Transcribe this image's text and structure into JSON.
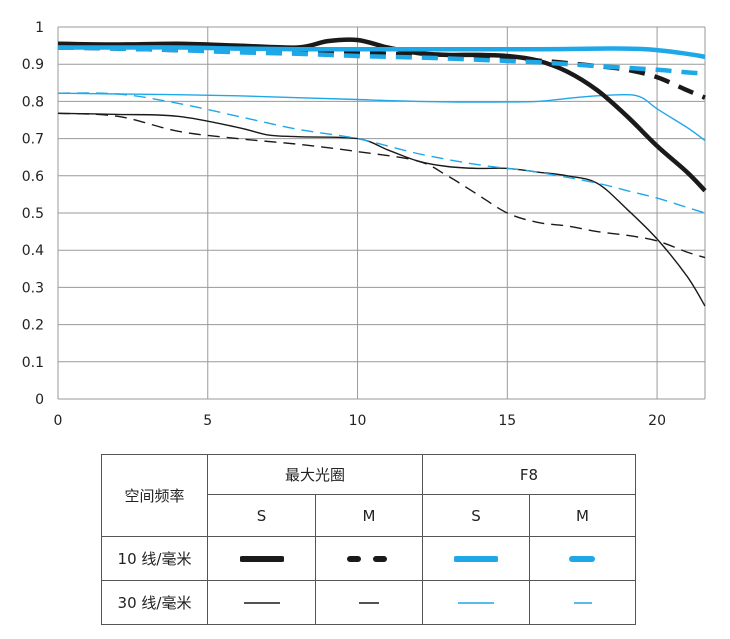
{
  "chart_data": {
    "type": "line",
    "xlim": [
      0,
      21.6
    ],
    "ylim": [
      0,
      1
    ],
    "x_ticks": [
      "0",
      "5",
      "10",
      "15",
      "20"
    ],
    "y_ticks": [
      "0",
      "0.1",
      "0.2",
      "0.3",
      "0.4",
      "0.5",
      "0.6",
      "0.7",
      "0.8",
      "0.9",
      "1"
    ],
    "grid": true,
    "colors": {
      "black": "#1a1a1a",
      "blue": "#1fa8e8"
    },
    "series": [
      {
        "name": "最大光圈 10 线/毫米 S",
        "color": "#1a1a1a",
        "width": "thick",
        "dash": "solid",
        "x": [
          0,
          2,
          4,
          6,
          8,
          9,
          10,
          11,
          12,
          13,
          14,
          15,
          16,
          17,
          18,
          19,
          20,
          21,
          21.6
        ],
        "y": [
          0.955,
          0.953,
          0.955,
          0.95,
          0.945,
          0.962,
          0.965,
          0.945,
          0.93,
          0.925,
          0.925,
          0.922,
          0.91,
          0.88,
          0.83,
          0.76,
          0.68,
          0.61,
          0.56
        ]
      },
      {
        "name": "最大光圈 10 线/毫米 M",
        "color": "#1a1a1a",
        "width": "thick",
        "dash": "long",
        "x": [
          0,
          2,
          4,
          6,
          8,
          10,
          12,
          14,
          16,
          18,
          19,
          20,
          21,
          21.6
        ],
        "y": [
          0.945,
          0.942,
          0.938,
          0.935,
          0.932,
          0.93,
          0.925,
          0.92,
          0.91,
          0.895,
          0.885,
          0.865,
          0.83,
          0.81
        ]
      },
      {
        "name": "F8 10 线/毫米 S",
        "color": "#1fa8e8",
        "width": "thick",
        "dash": "solid",
        "x": [
          0,
          2,
          4,
          6,
          8,
          10,
          12,
          14,
          16,
          18,
          19,
          20,
          21,
          21.6
        ],
        "y": [
          0.945,
          0.945,
          0.945,
          0.942,
          0.94,
          0.94,
          0.94,
          0.94,
          0.94,
          0.942,
          0.942,
          0.938,
          0.928,
          0.92
        ]
      },
      {
        "name": "F8 10 线/毫米 M",
        "color": "#1fa8e8",
        "width": "thick",
        "dash": "long",
        "x": [
          0,
          2,
          4,
          6,
          8,
          10,
          12,
          14,
          16,
          18,
          20,
          21,
          21.6
        ],
        "y": [
          0.945,
          0.942,
          0.938,
          0.932,
          0.928,
          0.922,
          0.918,
          0.912,
          0.905,
          0.895,
          0.885,
          0.878,
          0.875
        ]
      },
      {
        "name": "最大光圈 30 线/毫米 S",
        "color": "#1a1a1a",
        "width": "thin",
        "dash": "solid",
        "x": [
          0,
          2,
          4,
          6,
          7,
          8,
          10,
          11,
          12,
          13,
          14,
          15,
          16,
          17,
          18,
          19,
          20,
          21,
          21.6
        ],
        "y": [
          0.768,
          0.765,
          0.76,
          0.73,
          0.71,
          0.705,
          0.7,
          0.67,
          0.64,
          0.625,
          0.62,
          0.62,
          0.61,
          0.6,
          0.58,
          0.51,
          0.43,
          0.33,
          0.25
        ]
      },
      {
        "name": "最大光圈 30 线/毫米 M",
        "color": "#1a1a1a",
        "width": "thin",
        "dash": "long",
        "x": [
          0,
          2,
          4,
          6,
          8,
          10,
          12,
          13,
          14,
          15,
          16,
          17,
          18,
          19,
          20,
          21,
          21.6
        ],
        "y": [
          0.768,
          0.76,
          0.72,
          0.7,
          0.685,
          0.665,
          0.64,
          0.6,
          0.55,
          0.5,
          0.475,
          0.465,
          0.45,
          0.44,
          0.425,
          0.395,
          0.38
        ]
      },
      {
        "name": "F8 30 线/毫米 S",
        "color": "#1fa8e8",
        "width": "thin",
        "dash": "solid",
        "x": [
          0,
          2,
          4,
          6,
          8,
          10,
          12,
          14,
          16,
          17,
          18,
          19,
          19.5,
          20,
          21,
          21.6
        ],
        "y": [
          0.822,
          0.82,
          0.818,
          0.815,
          0.81,
          0.805,
          0.8,
          0.798,
          0.8,
          0.808,
          0.815,
          0.818,
          0.81,
          0.78,
          0.73,
          0.695
        ]
      },
      {
        "name": "F8 30 线/毫米 M",
        "color": "#1fa8e8",
        "width": "thin",
        "dash": "long",
        "x": [
          0,
          2,
          4,
          6,
          8,
          10,
          12,
          14,
          16,
          18,
          19,
          20,
          21,
          21.6
        ],
        "y": [
          0.822,
          0.82,
          0.795,
          0.76,
          0.725,
          0.7,
          0.66,
          0.63,
          0.61,
          0.58,
          0.56,
          0.54,
          0.515,
          0.5
        ]
      }
    ]
  },
  "legend": {
    "row_header": "空间频率",
    "group1": "最大光圈",
    "group2": "F8",
    "s1": "S",
    "m1": "M",
    "s2": "S",
    "m2": "M",
    "row1": "10 线/毫米",
    "row2": "30 线/毫米"
  }
}
